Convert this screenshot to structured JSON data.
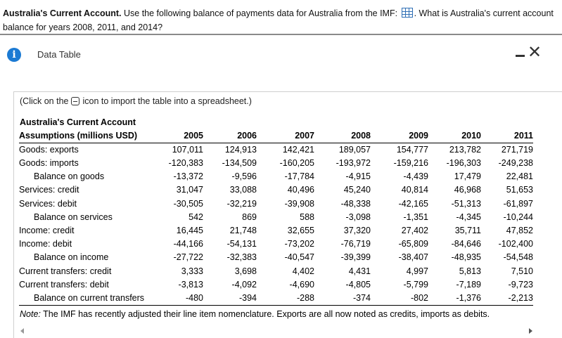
{
  "question": {
    "bold_lead": "Australia's Current Account.",
    "text_before_icon": " Use the following balance of payments data for Australia from the IMF:",
    "text_after_icon": ". What is Australia's current account balance for years 2008, 2011, and 2014?"
  },
  "dialog": {
    "title": "Data Table",
    "hint_before": "(Click on the",
    "hint_after": "icon to import the table into a spreadsheet.)",
    "table_title": "Australia's Current Account",
    "row_header": "Assumptions (millions USD)",
    "years": [
      "2005",
      "2006",
      "2007",
      "2008",
      "2009",
      "2010",
      "2011"
    ],
    "rows": [
      {
        "label": "Goods: exports",
        "values": [
          "107,011",
          "124,913",
          "142,421",
          "189,057",
          "154,777",
          "213,782",
          "271,719"
        ]
      },
      {
        "label": "Goods: imports",
        "values": [
          "-120,383",
          "-134,509",
          "-160,205",
          "-193,972",
          "-159,216",
          "-196,303",
          "-249,238"
        ]
      },
      {
        "label": "Balance on goods",
        "values": [
          "-13,372",
          "-9,596",
          "-17,784",
          "-4,915",
          "-4,439",
          "17,479",
          "22,481"
        ]
      },
      {
        "label": "Services: credit",
        "values": [
          "31,047",
          "33,088",
          "40,496",
          "45,240",
          "40,814",
          "46,968",
          "51,653"
        ]
      },
      {
        "label": "Services: debit",
        "values": [
          "-30,505",
          "-32,219",
          "-39,908",
          "-48,338",
          "-42,165",
          "-51,313",
          "-61,897"
        ]
      },
      {
        "label": "Balance on services",
        "values": [
          "542",
          "869",
          "588",
          "-3,098",
          "-1,351",
          "-4,345",
          "-10,244"
        ]
      },
      {
        "label": "Income: credit",
        "values": [
          "16,445",
          "21,748",
          "32,655",
          "37,320",
          "27,402",
          "35,711",
          "47,852"
        ]
      },
      {
        "label": "Income: debit",
        "values": [
          "-44,166",
          "-54,131",
          "-73,202",
          "-76,719",
          "-65,809",
          "-84,646",
          "-102,400"
        ]
      },
      {
        "label": "Balance on income",
        "values": [
          "-27,722",
          "-32,383",
          "-40,547",
          "-39,399",
          "-38,407",
          "-48,935",
          "-54,548"
        ]
      },
      {
        "label": "Current transfers: credit",
        "values": [
          "3,333",
          "3,698",
          "4,402",
          "4,431",
          "4,997",
          "5,813",
          "7,510"
        ]
      },
      {
        "label": "Current transfers: debit",
        "values": [
          "-3,813",
          "-4,092",
          "-4,690",
          "-4,805",
          "-5,799",
          "-7,189",
          "-9,723"
        ]
      },
      {
        "label": "Balance on current transfers",
        "values": [
          "-480",
          "-394",
          "-288",
          "-374",
          "-802",
          "-1,376",
          "-2,213"
        ]
      }
    ],
    "note_label": "Note:",
    "note_text": " The IMF has recently adjusted their line item nomenclature. Exports are all now noted as credits, imports as debits."
  },
  "colors": {
    "info_icon": "#1b7ad3",
    "grid_icon": "#2f6fb5"
  }
}
